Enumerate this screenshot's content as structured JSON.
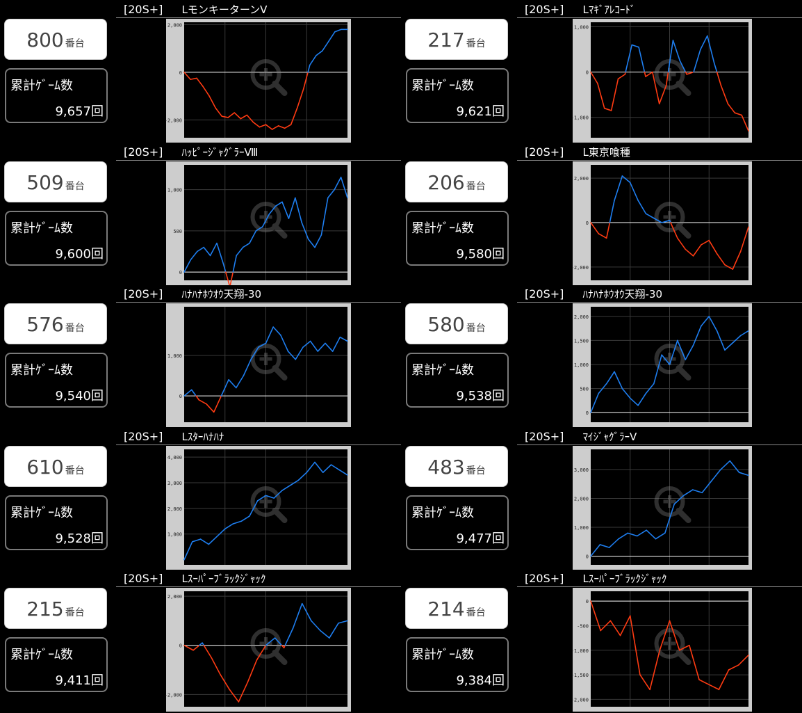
{
  "panels": [
    {
      "tag": "[20S+]",
      "name": "LモンキーターンⅤ",
      "machine": "800",
      "unit": "番台",
      "label": "累計ｹﾞｰﾑ数",
      "games": "9,657回",
      "chart_data": {
        "type": "line",
        "ticks": [
          2000,
          0,
          -2000
        ],
        "tick_labels": [
          "2,000",
          "0",
          "-2,000"
        ],
        "ylim": [
          -2750,
          2100
        ],
        "values": [
          0,
          -300,
          -250,
          -600,
          -1000,
          -1500,
          -1850,
          -1900,
          -1700,
          -1950,
          -1800,
          -2100,
          -2300,
          -2200,
          -2400,
          -2250,
          -2350,
          -2200,
          -1500,
          -700,
          300,
          700,
          900,
          1300,
          1700,
          1800,
          1800
        ]
      }
    },
    {
      "tag": "[20S+]",
      "name": "Lﾏｷﾞｱﾚｺｰﾄﾞ",
      "machine": "217",
      "unit": "番台",
      "label": "累計ｹﾞｰﾑ数",
      "games": "9,621回",
      "chart_data": {
        "type": "line",
        "ticks": [
          1000,
          0,
          -1000
        ],
        "tick_labels": [
          "1,000",
          "0",
          "-1,000"
        ],
        "ylim": [
          -1450,
          1100
        ],
        "values": [
          0,
          -250,
          -800,
          -850,
          -150,
          -50,
          600,
          550,
          -100,
          0,
          -700,
          -300,
          700,
          250,
          -50,
          0,
          500,
          800,
          200,
          -300,
          -700,
          -900,
          -950,
          -1300
        ]
      }
    },
    {
      "tag": "[20S+]",
      "name": "ﾊｯﾋﾟｰｼﾞｬｸﾞﾗｰⅧ",
      "machine": "509",
      "unit": "番台",
      "label": "累計ｹﾞｰﾑ数",
      "games": "9,600回",
      "chart_data": {
        "type": "line",
        "ticks": [
          1000,
          500,
          0
        ],
        "tick_labels": [
          "1,000",
          "500",
          "0"
        ],
        "ylim": [
          -100,
          1300
        ],
        "values": [
          0,
          150,
          250,
          300,
          200,
          350,
          100,
          -180,
          200,
          300,
          350,
          500,
          550,
          700,
          800,
          850,
          650,
          900,
          600,
          400,
          300,
          450,
          900,
          1000,
          1150,
          900
        ]
      }
    },
    {
      "tag": "[20S+]",
      "name": "L東京喰種",
      "machine": "206",
      "unit": "番台",
      "label": "累計ｹﾞｰﾑ数",
      "games": "9,580回",
      "chart_data": {
        "type": "line",
        "ticks": [
          2000,
          0,
          -2000
        ],
        "tick_labels": [
          "2,000",
          "0",
          "-2,000"
        ],
        "ylim": [
          -2600,
          2600
        ],
        "values": [
          0,
          -500,
          -700,
          1000,
          2100,
          1800,
          1000,
          400,
          200,
          0,
          100,
          -700,
          -1200,
          -1500,
          -1000,
          -800,
          -1400,
          -1900,
          -2100,
          -1300,
          -200
        ]
      }
    },
    {
      "tag": "[20S+]",
      "name": "ﾊﾅﾊﾅﾎｳｵｳ天翔-30",
      "machine": "576",
      "unit": "番台",
      "label": "累計ｹﾞｰﾑ数",
      "games": "9,540回",
      "chart_data": {
        "type": "line",
        "ticks": [
          1000,
          0
        ],
        "tick_labels": [
          "1,000",
          "0"
        ],
        "ylim": [
          -650,
          2200
        ],
        "values": [
          0,
          150,
          -100,
          -200,
          -400,
          0,
          400,
          200,
          500,
          900,
          1200,
          1300,
          1700,
          1500,
          1100,
          900,
          1200,
          1350,
          1100,
          1300,
          1100,
          1450,
          1350
        ]
      }
    },
    {
      "tag": "[20S+]",
      "name": "ﾊﾅﾊﾅﾎｳｵｳ天翔-30",
      "machine": "580",
      "unit": "番台",
      "label": "累計ｹﾞｰﾑ数",
      "games": "9,538回",
      "chart_data": {
        "type": "line",
        "ticks": [
          2000,
          1500,
          1000,
          500,
          0
        ],
        "tick_labels": [
          "2,000",
          "1,500",
          "1,000",
          "500",
          "0"
        ],
        "ylim": [
          -200,
          2200
        ],
        "values": [
          0,
          400,
          600,
          850,
          500,
          300,
          150,
          400,
          600,
          1200,
          1000,
          1500,
          1100,
          1400,
          1800,
          2000,
          1700,
          1300,
          1450,
          1600,
          1700
        ]
      }
    },
    {
      "tag": "[20S+]",
      "name": "Lｽﾀｰﾊﾅﾊﾅ",
      "machine": "610",
      "unit": "番台",
      "label": "累計ｹﾞｰﾑ数",
      "games": "9,528回",
      "chart_data": {
        "type": "line",
        "ticks": [
          4000,
          3000,
          2000,
          1000
        ],
        "tick_labels": [
          "4,000",
          "3,000",
          "2,000",
          "1,000"
        ],
        "ylim": [
          -200,
          4300
        ],
        "values": [
          0,
          700,
          800,
          600,
          900,
          1200,
          1400,
          1500,
          1700,
          2300,
          2500,
          2400,
          2700,
          2900,
          3100,
          3400,
          3800,
          3400,
          3700,
          3500,
          3300
        ]
      }
    },
    {
      "tag": "[20S+]",
      "name": "ﾏｲｼﾞｬｸﾞﾗｰⅤ",
      "machine": "483",
      "unit": "番台",
      "label": "累計ｹﾞｰﾑ数",
      "games": "9,477回",
      "chart_data": {
        "type": "line",
        "ticks": [
          3000,
          2000,
          1000,
          0
        ],
        "tick_labels": [
          "3,000",
          "2,000",
          "1,000",
          "0"
        ],
        "ylim": [
          -300,
          3700
        ],
        "values": [
          0,
          400,
          300,
          600,
          800,
          700,
          900,
          600,
          800,
          1800,
          2100,
          2300,
          2200,
          2600,
          3000,
          3300,
          2900,
          2800
        ]
      }
    },
    {
      "tag": "[20S+]",
      "name": "Lｽｰﾊﾟｰﾌﾞﾗｯｸｼﾞｬｯｸ",
      "machine": "215",
      "unit": "番台",
      "label": "累計ｹﾞｰﾑ数",
      "games": "9,411回",
      "chart_data": {
        "type": "line",
        "ticks": [
          2000,
          0,
          -2000
        ],
        "tick_labels": [
          "2,000",
          "0",
          "-2,000"
        ],
        "ylim": [
          -2500,
          2200
        ],
        "values": [
          0,
          -200,
          100,
          -500,
          -1200,
          -1800,
          -2300,
          -1500,
          -600,
          0,
          300,
          -100,
          700,
          1700,
          1000,
          600,
          300,
          900,
          1000
        ]
      }
    },
    {
      "tag": "[20S+]",
      "name": "Lｽｰﾊﾟｰﾌﾞﾗｯｸｼﾞｬｯｸ",
      "machine": "214",
      "unit": "番台",
      "label": "累計ｹﾞｰﾑ数",
      "games": "9,384回",
      "chart_data": {
        "type": "line",
        "ticks": [
          0,
          -500,
          -1000,
          -1500,
          -2000
        ],
        "tick_labels": [
          "0",
          "-500",
          "-1,000",
          "-1,500",
          "-2,000"
        ],
        "ylim": [
          -2150,
          200
        ],
        "values": [
          0,
          -600,
          -400,
          -700,
          -300,
          -1500,
          -1800,
          -1000,
          -400,
          -1000,
          -900,
          -1600,
          -1700,
          -1800,
          -1400,
          -1300,
          -1100
        ]
      }
    }
  ]
}
